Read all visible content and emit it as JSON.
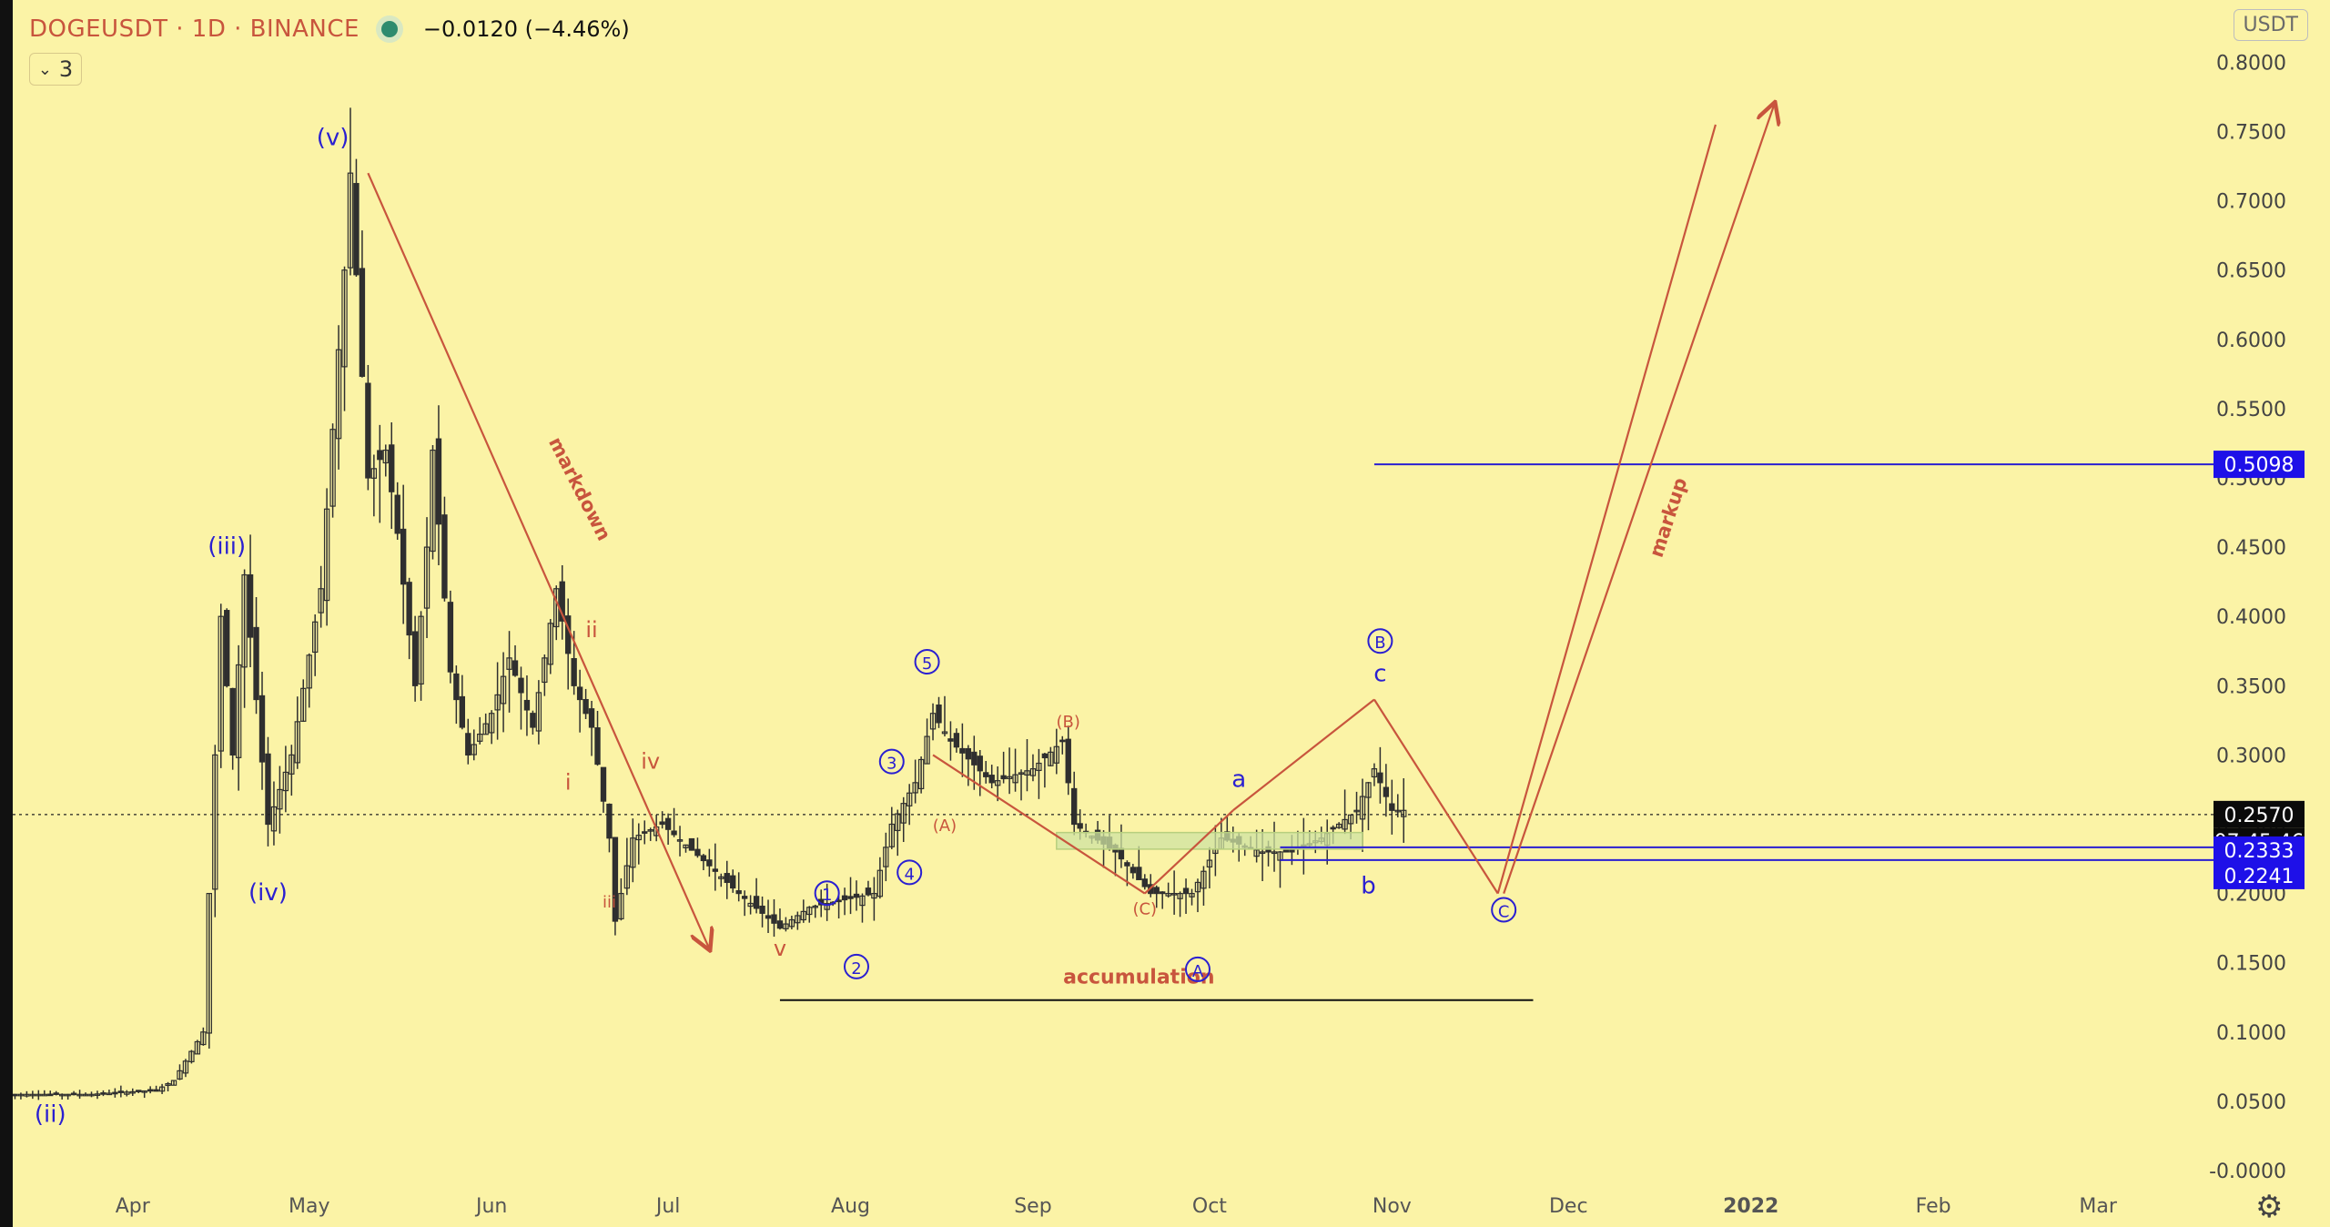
{
  "header": {
    "symbol": "DOGEUSDT · 1D · BINANCE",
    "change": "−0.0120 (−4.46%)",
    "indicator_count": "3",
    "currency": "USDT"
  },
  "colors": {
    "background": "#fbf3a6",
    "annotation_red": "#c8553d",
    "wave_blue": "#2a1fd1",
    "candle": "#2f2f2f",
    "price_box": "#0a0a0a",
    "level_box": "#1e10e8",
    "zone_fill": "#cfe3a2"
  },
  "chart_data": {
    "type": "candlestick",
    "title": "DOGEUSDT · 1D · BINANCE",
    "y_axis": {
      "ticks": [
        "0.8000",
        "0.7500",
        "0.7000",
        "0.6500",
        "0.6000",
        "0.5500",
        "0.5000",
        "0.4500",
        "0.4000",
        "0.3500",
        "0.3000",
        "0.2500",
        "0.2000",
        "0.1500",
        "0.1000",
        "0.0500",
        "-0.0000"
      ],
      "range": [
        -0.0,
        0.8
      ]
    },
    "x_axis": {
      "ticks": [
        "Apr",
        "May",
        "Jun",
        "Jul",
        "Aug",
        "Sep",
        "Oct",
        "Nov",
        "Dec",
        "2022",
        "Feb",
        "Mar"
      ],
      "range": [
        "2021-03-11",
        "2022-03-20"
      ]
    },
    "price_path": [
      [
        "2021-03-11",
        0.055
      ],
      [
        "2021-03-25",
        0.055
      ],
      [
        "2021-04-05",
        0.058
      ],
      [
        "2021-04-08",
        0.065
      ],
      [
        "2021-04-13",
        0.1
      ],
      [
        "2021-04-16",
        0.4
      ],
      [
        "2021-04-18",
        0.3
      ],
      [
        "2021-04-20",
        0.43
      ],
      [
        "2021-04-24",
        0.25
      ],
      [
        "2021-04-28",
        0.3
      ],
      [
        "2021-05-03",
        0.42
      ],
      [
        "2021-05-07",
        0.65
      ],
      [
        "2021-05-08",
        0.72
      ],
      [
        "2021-05-11",
        0.5
      ],
      [
        "2021-05-14",
        0.52
      ],
      [
        "2021-05-16",
        0.46
      ],
      [
        "2021-05-19",
        0.35
      ],
      [
        "2021-05-21",
        0.45
      ],
      [
        "2021-05-22",
        0.52
      ],
      [
        "2021-05-25",
        0.36
      ],
      [
        "2021-05-28",
        0.3
      ],
      [
        "2021-06-01",
        0.33
      ],
      [
        "2021-06-04",
        0.37
      ],
      [
        "2021-06-08",
        0.32
      ],
      [
        "2021-06-12",
        0.42
      ],
      [
        "2021-06-15",
        0.35
      ],
      [
        "2021-06-18",
        0.32
      ],
      [
        "2021-06-21",
        0.24
      ],
      [
        "2021-06-22",
        0.18
      ],
      [
        "2021-06-25",
        0.24
      ],
      [
        "2021-06-30",
        0.25
      ],
      [
        "2021-07-08",
        0.22
      ],
      [
        "2021-07-13",
        0.2
      ],
      [
        "2021-07-20",
        0.175
      ],
      [
        "2021-07-25",
        0.19
      ],
      [
        "2021-08-05",
        0.2
      ],
      [
        "2021-08-08",
        0.25
      ],
      [
        "2021-08-12",
        0.28
      ],
      [
        "2021-08-15",
        0.33
      ],
      [
        "2021-08-18",
        0.31
      ],
      [
        "2021-08-25",
        0.28
      ],
      [
        "2021-09-01",
        0.29
      ],
      [
        "2021-09-06",
        0.31
      ],
      [
        "2021-09-08",
        0.25
      ],
      [
        "2021-09-15",
        0.23
      ],
      [
        "2021-09-21",
        0.2
      ],
      [
        "2021-09-28",
        0.2
      ],
      [
        "2021-10-03",
        0.24
      ],
      [
        "2021-10-10",
        0.23
      ],
      [
        "2021-10-15",
        0.23
      ],
      [
        "2021-10-20",
        0.24
      ],
      [
        "2021-10-26",
        0.26
      ],
      [
        "2021-10-29",
        0.29
      ],
      [
        "2021-11-01",
        0.26
      ],
      [
        "2021-11-03",
        0.26
      ]
    ],
    "horizontal_levels": [
      {
        "label": "0.5098",
        "value": 0.5098
      },
      {
        "label": "0.2333",
        "value": 0.2333
      },
      {
        "label": "0.2241",
        "value": 0.2241
      }
    ],
    "current_price": {
      "label": "0.2570",
      "value": 0.257,
      "countdown": "07:45:46"
    },
    "annotations": {
      "wave_labels_blue": [
        "(ii)",
        "(iii)",
        "(iv)",
        "(v)",
        "1",
        "2",
        "3",
        "4",
        "5",
        "a",
        "b",
        "c",
        "A",
        "B",
        "C"
      ],
      "wave_labels_red": [
        "i",
        "ii",
        "iii",
        "iv",
        "v",
        "(A)",
        "(B)",
        "(C)"
      ],
      "text_labels": [
        "markdown",
        "markup",
        "accumulation"
      ]
    }
  }
}
